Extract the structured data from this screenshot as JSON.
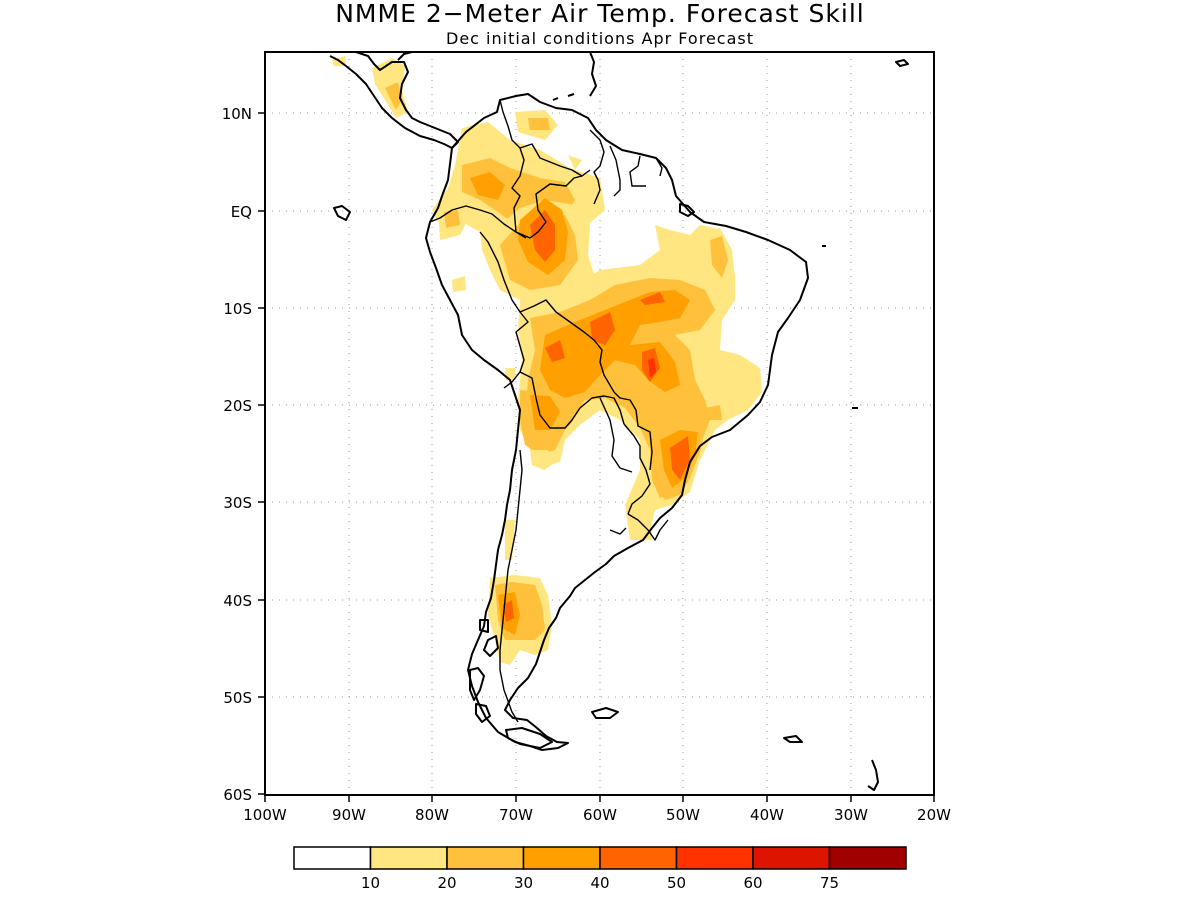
{
  "title": "NMME 2−Meter Air Temp. Forecast Skill",
  "subtitle": "Dec initial conditions  Apr Forecast",
  "y_ticks": [
    "10N",
    "EQ",
    "10S",
    "20S",
    "30S",
    "40S",
    "50S",
    "60S"
  ],
  "x_ticks": [
    "100W",
    "90W",
    "80W",
    "70W",
    "60W",
    "50W",
    "40W",
    "30W",
    "20W"
  ],
  "legend": {
    "labels": [
      "10",
      "20",
      "30",
      "40",
      "50",
      "60",
      "75"
    ],
    "colors": [
      "#ffffff",
      "#ffe680",
      "#ffc03c",
      "#ffa000",
      "#ff6400",
      "#ff3200",
      "#dc1400",
      "#a00000"
    ]
  },
  "colors": {
    "frame": "#000000",
    "grid": "#9a9a9a",
    "land_outline": "#000000"
  }
}
